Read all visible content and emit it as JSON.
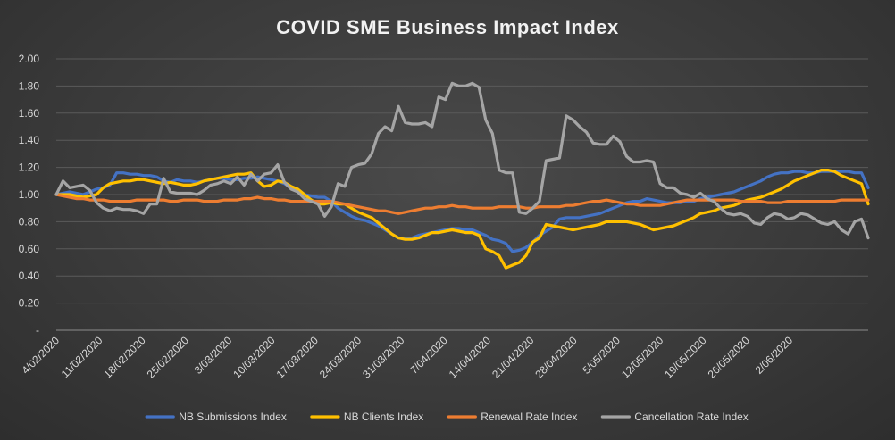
{
  "chart_data": {
    "type": "line",
    "title": "COVID SME Business Impact Index",
    "xlabel": "",
    "ylabel": "",
    "ylim": [
      0,
      2
    ],
    "yticks": [
      "-",
      "0.20",
      "0.40",
      "0.60",
      "0.80",
      "1.00",
      "1.20",
      "1.40",
      "1.60",
      "1.80",
      "2.00"
    ],
    "x_start": "2020-02-04",
    "xtick_labels": [
      "4/02/2020",
      "11/02/2020",
      "18/02/2020",
      "25/02/2020",
      "3/03/2020",
      "10/03/2020",
      "17/03/2020",
      "24/03/2020",
      "31/03/2020",
      "7/04/2020",
      "14/04/2020",
      "21/04/2020",
      "28/04/2020",
      "5/05/2020",
      "12/05/2020",
      "19/05/2020",
      "26/05/2020",
      "2/06/2020"
    ],
    "grid": true,
    "legend_position": "bottom",
    "series": [
      {
        "name": "NB Submissions Index",
        "color": "#4472C4",
        "values": [
          1.0,
          1.01,
          1.02,
          1.01,
          1.0,
          1.02,
          1.04,
          1.05,
          1.07,
          1.16,
          1.16,
          1.15,
          1.15,
          1.14,
          1.14,
          1.13,
          1.1,
          1.09,
          1.11,
          1.1,
          1.1,
          1.09,
          1.1,
          1.11,
          1.12,
          1.12,
          1.11,
          1.11,
          1.12,
          1.12,
          1.13,
          1.12,
          1.11,
          1.1,
          1.08,
          1.05,
          1.02,
          1.0,
          0.99,
          0.98,
          0.98,
          0.95,
          0.9,
          0.87,
          0.84,
          0.82,
          0.81,
          0.79,
          0.77,
          0.74,
          0.71,
          0.68,
          0.68,
          0.68,
          0.7,
          0.71,
          0.72,
          0.73,
          0.74,
          0.75,
          0.75,
          0.74,
          0.74,
          0.72,
          0.7,
          0.67,
          0.66,
          0.64,
          0.58,
          0.59,
          0.61,
          0.65,
          0.7,
          0.73,
          0.76,
          0.82,
          0.83,
          0.83,
          0.83,
          0.84,
          0.85,
          0.86,
          0.88,
          0.9,
          0.92,
          0.94,
          0.95,
          0.95,
          0.97,
          0.96,
          0.95,
          0.94,
          0.94,
          0.94,
          0.95,
          0.95,
          0.97,
          0.98,
          0.99,
          1.0,
          1.01,
          1.02,
          1.04,
          1.06,
          1.08,
          1.1,
          1.13,
          1.15,
          1.16,
          1.16,
          1.17,
          1.17,
          1.16,
          1.16,
          1.17,
          1.17,
          1.17,
          1.17,
          1.17,
          1.16,
          1.16,
          1.05
        ]
      },
      {
        "name": "NB Clients Index",
        "color": "#FFC000",
        "values": [
          1.0,
          1.0,
          1.0,
          0.99,
          0.98,
          0.99,
          1.0,
          1.05,
          1.08,
          1.09,
          1.1,
          1.1,
          1.11,
          1.11,
          1.1,
          1.09,
          1.08,
          1.09,
          1.08,
          1.07,
          1.07,
          1.08,
          1.1,
          1.11,
          1.12,
          1.13,
          1.14,
          1.15,
          1.15,
          1.16,
          1.1,
          1.06,
          1.07,
          1.1,
          1.09,
          1.06,
          1.04,
          1.0,
          0.96,
          0.93,
          0.93,
          0.94,
          0.93,
          0.93,
          0.9,
          0.87,
          0.85,
          0.83,
          0.79,
          0.75,
          0.71,
          0.68,
          0.67,
          0.67,
          0.68,
          0.7,
          0.72,
          0.72,
          0.73,
          0.74,
          0.73,
          0.72,
          0.72,
          0.7,
          0.6,
          0.58,
          0.55,
          0.46,
          0.48,
          0.5,
          0.55,
          0.65,
          0.68,
          0.78,
          0.77,
          0.76,
          0.75,
          0.74,
          0.75,
          0.76,
          0.77,
          0.78,
          0.8,
          0.8,
          0.8,
          0.8,
          0.79,
          0.78,
          0.76,
          0.74,
          0.75,
          0.76,
          0.77,
          0.79,
          0.81,
          0.83,
          0.86,
          0.87,
          0.88,
          0.9,
          0.91,
          0.92,
          0.94,
          0.96,
          0.97,
          0.98,
          1.0,
          1.02,
          1.04,
          1.07,
          1.1,
          1.12,
          1.14,
          1.16,
          1.18,
          1.18,
          1.17,
          1.14,
          1.12,
          1.1,
          1.08,
          0.93
        ]
      },
      {
        "name": "Renewal Rate Index",
        "color": "#ED7D31",
        "values": [
          1.0,
          0.99,
          0.98,
          0.97,
          0.97,
          0.96,
          0.96,
          0.96,
          0.95,
          0.95,
          0.95,
          0.95,
          0.96,
          0.96,
          0.96,
          0.96,
          0.96,
          0.95,
          0.95,
          0.96,
          0.96,
          0.96,
          0.95,
          0.95,
          0.95,
          0.96,
          0.96,
          0.96,
          0.97,
          0.97,
          0.98,
          0.97,
          0.97,
          0.96,
          0.96,
          0.95,
          0.95,
          0.95,
          0.95,
          0.95,
          0.95,
          0.95,
          0.94,
          0.93,
          0.92,
          0.91,
          0.9,
          0.89,
          0.88,
          0.88,
          0.87,
          0.86,
          0.87,
          0.88,
          0.89,
          0.9,
          0.9,
          0.91,
          0.91,
          0.92,
          0.91,
          0.91,
          0.9,
          0.9,
          0.9,
          0.9,
          0.91,
          0.91,
          0.91,
          0.91,
          0.9,
          0.9,
          0.91,
          0.91,
          0.91,
          0.91,
          0.92,
          0.92,
          0.93,
          0.94,
          0.95,
          0.95,
          0.96,
          0.95,
          0.94,
          0.93,
          0.93,
          0.92,
          0.92,
          0.92,
          0.92,
          0.93,
          0.94,
          0.95,
          0.96,
          0.96,
          0.96,
          0.96,
          0.96,
          0.96,
          0.96,
          0.96,
          0.95,
          0.95,
          0.95,
          0.95,
          0.94,
          0.94,
          0.94,
          0.95,
          0.95,
          0.95,
          0.95,
          0.95,
          0.95,
          0.95,
          0.95,
          0.96,
          0.96,
          0.96,
          0.96,
          0.96
        ]
      },
      {
        "name": "Cancellation Rate Index",
        "color": "#A5A5A5",
        "values": [
          1.0,
          1.1,
          1.05,
          1.06,
          1.07,
          1.03,
          0.94,
          0.9,
          0.88,
          0.9,
          0.89,
          0.89,
          0.88,
          0.86,
          0.93,
          0.93,
          1.12,
          1.02,
          1.01,
          1.01,
          1.01,
          1.0,
          1.03,
          1.07,
          1.08,
          1.1,
          1.08,
          1.13,
          1.07,
          1.15,
          1.1,
          1.15,
          1.16,
          1.22,
          1.09,
          1.04,
          1.02,
          0.97,
          0.95,
          0.93,
          0.84,
          0.91,
          1.08,
          1.06,
          1.2,
          1.22,
          1.23,
          1.3,
          1.45,
          1.5,
          1.47,
          1.65,
          1.53,
          1.52,
          1.52,
          1.53,
          1.5,
          1.72,
          1.7,
          1.82,
          1.8,
          1.8,
          1.82,
          1.79,
          1.55,
          1.45,
          1.18,
          1.16,
          1.16,
          0.87,
          0.86,
          0.9,
          0.95,
          1.25,
          1.26,
          1.27,
          1.58,
          1.55,
          1.5,
          1.46,
          1.38,
          1.37,
          1.37,
          1.43,
          1.39,
          1.28,
          1.24,
          1.24,
          1.25,
          1.24,
          1.08,
          1.05,
          1.05,
          1.01,
          1.0,
          0.98,
          1.01,
          0.97,
          0.95,
          0.9,
          0.86,
          0.85,
          0.86,
          0.84,
          0.79,
          0.78,
          0.83,
          0.86,
          0.85,
          0.82,
          0.83,
          0.86,
          0.85,
          0.82,
          0.79,
          0.78,
          0.8,
          0.74,
          0.71,
          0.8,
          0.82,
          0.68
        ]
      }
    ]
  }
}
